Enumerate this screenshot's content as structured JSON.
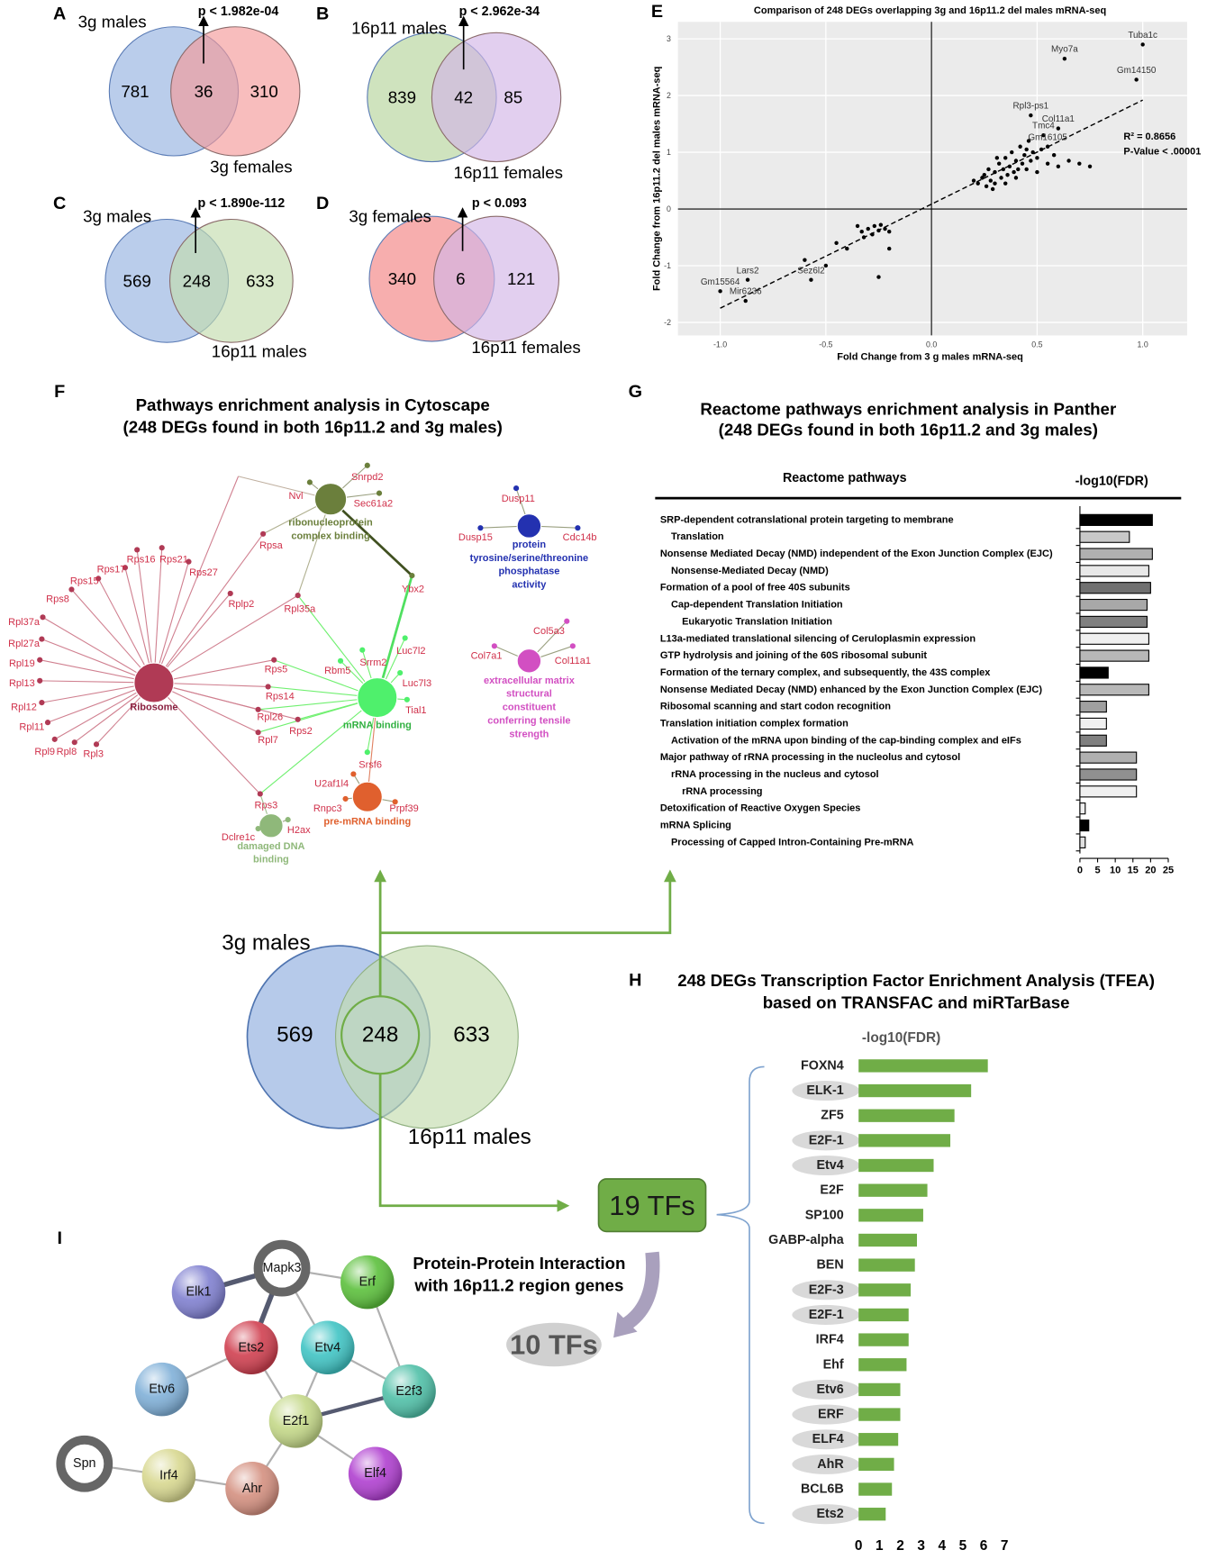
{
  "panel_letters": [
    "A",
    "B",
    "C",
    "D",
    "E",
    "F",
    "G",
    "H",
    "I"
  ],
  "venns": [
    {
      "p_value": "p < 1.982e-04",
      "left": {
        "label": "3g males",
        "count": 781,
        "color": "#a9c1e6"
      },
      "overlap": 36,
      "right": {
        "label": "3g females",
        "count": 310,
        "color": "#f59a9a"
      }
    },
    {
      "p_value": "p < 2.962e-34",
      "left": {
        "label": "16p11 males",
        "count": 839,
        "color": "#c3dcae"
      },
      "overlap": 42,
      "right": {
        "label": "16p11 females",
        "count": 85,
        "color": "#d3b6e6"
      }
    },
    {
      "p_value": "p < 1.890e-112",
      "left": {
        "label": "3g males",
        "count": 569,
        "color": "#a9c1e6"
      },
      "overlap": 248,
      "right": {
        "label": "16p11 males",
        "count": 633,
        "color": "#c3dcae"
      }
    },
    {
      "p_value": "p < 0.093",
      "left": {
        "label": "3g females",
        "count": 340,
        "color": "#f59a9a"
      },
      "overlap": 6,
      "right": {
        "label": "16p11 females",
        "count": 121,
        "color": "#d3b6e6"
      }
    }
  ],
  "chart_data": [
    {
      "type": "scatter",
      "title": "Comparison of 248 DEGs overlapping 3g and 16p11.2 del males mRNA-seq",
      "x_label": "Fold Change from 3 g males mRNA-seq",
      "y_label": "Fold Change from 16p11.2 del males mRNA-seq",
      "xlim": [
        -1.2,
        1.21
      ],
      "ylim": [
        -2.23,
        3.3
      ],
      "xticks": [
        {
          "value": -1,
          "label": "-1.0"
        },
        {
          "value": -0.5,
          "label": "-0.5"
        },
        {
          "value": 0,
          "label": "0.0"
        },
        {
          "value": 0.5,
          "label": "0.5"
        },
        {
          "value": 1,
          "label": "1.0"
        }
      ],
      "yticks": [
        -2,
        -1,
        0,
        1,
        2,
        3
      ],
      "grid": true,
      "color": "#000000",
      "x": [
        0.2,
        0.22,
        0.24,
        0.25,
        0.26,
        0.27,
        0.28,
        0.3,
        0.3,
        0.32,
        0.33,
        0.34,
        0.35,
        0.36,
        0.37,
        0.38,
        0.39,
        0.4,
        0.41,
        0.42,
        0.43,
        0.44,
        0.45,
        0.46,
        0.47,
        0.48,
        0.5,
        0.52,
        0.55,
        0.58,
        0.6,
        0.65,
        0.7,
        0.75,
        0.29,
        0.31,
        0.4,
        0.35,
        0.45,
        0.5,
        -0.35,
        -0.33,
        -0.3,
        -0.28,
        -0.27,
        -0.25,
        -0.24,
        -0.22,
        -0.2,
        -0.32,
        -0.45,
        -0.4,
        -0.5,
        -0.25,
        -0.6,
        -0.2
      ],
      "y": [
        0.5,
        0.45,
        0.55,
        0.6,
        0.4,
        0.7,
        0.5,
        0.65,
        0.45,
        0.8,
        0.55,
        0.7,
        0.9,
        0.6,
        0.75,
        1.0,
        0.65,
        0.85,
        0.7,
        1.1,
        0.8,
        0.95,
        0.7,
        1.2,
        0.85,
        1.0,
        0.9,
        1.05,
        0.8,
        0.95,
        0.75,
        0.85,
        0.8,
        0.75,
        0.35,
        0.9,
        0.55,
        0.45,
        1.05,
        0.65,
        -0.3,
        -0.4,
        -0.35,
        -0.45,
        -0.3,
        -0.38,
        -0.28,
        -0.35,
        -0.4,
        -0.5,
        -0.6,
        -0.7,
        -1.0,
        -1.2,
        -0.9,
        -0.7
      ],
      "labeled_points": [
        {
          "label": "Tuba1c",
          "x": 1.0,
          "y": 2.9
        },
        {
          "label": "Myo7a",
          "x": 0.63,
          "y": 2.65
        },
        {
          "label": "Gm14150",
          "x": 0.97,
          "y": 2.28
        },
        {
          "label": "Rpl3-ps1",
          "x": 0.47,
          "y": 1.65
        },
        {
          "label": "Col11a1",
          "x": 0.6,
          "y": 1.42
        },
        {
          "label": "Tmc4",
          "x": 0.53,
          "y": 1.3
        },
        {
          "label": "Gm16105",
          "x": 0.55,
          "y": 1.1
        },
        {
          "label": "Lars2",
          "x": -0.87,
          "y": -1.25
        },
        {
          "label": "Sez6l2",
          "x": -0.57,
          "y": -1.25
        },
        {
          "label": "Gm15564",
          "x": -1.0,
          "y": -1.45
        },
        {
          "label": "Mir6236",
          "x": -0.88,
          "y": -1.62
        }
      ],
      "trendline": {
        "x": [
          -1.0,
          1.0
        ],
        "y": [
          -1.75,
          1.92
        ]
      },
      "annotations": [
        "R² = 0.8656",
        "P-Value < .00001"
      ]
    },
    {
      "type": "bar",
      "orientation": "horizontal",
      "title": [
        "Reactome pathways enrichment analysis in Panther",
        "(248 DEGs found in both 16p11.2 and 3g males)"
      ],
      "category_header": "Reactome pathways",
      "value_header": "-log10(FDR)",
      "categories": [
        "SRP-dependent cotranslational protein targeting to membrane",
        "Translation",
        "Nonsense Mediated Decay (NMD) independent of the Exon Junction Complex (EJC)",
        "Nonsense-Mediated Decay (NMD)",
        "Formation of a pool of free 40S subunits",
        "Cap-dependent Translation Initiation",
        "Eukaryotic Translation Initiation",
        "L13a-mediated translational silencing of Ceruloplasmin expression",
        "GTP hydrolysis and joining of the 60S ribosomal subunit",
        "Formation of the ternary complex, and subsequently, the 43S complex",
        "Nonsense Mediated Decay (NMD) enhanced by the Exon Junction Complex (EJC)",
        "Ribosomal scanning and start codon recognition",
        "Translation initiation complex formation",
        "Activation of the mRNA upon binding of the cap-binding complex and eIFs",
        "Major pathway of rRNA processing in the nucleolus and cytosol",
        "rRNA processing in the nucleus and cytosol",
        "rRNA processing",
        "Detoxification of Reactive Oxygen Species",
        "mRNA Splicing",
        "Processing of Capped Intron-Containing Pre-mRNA"
      ],
      "values": [
        20.5,
        14,
        20.5,
        19.5,
        20,
        19,
        19,
        19.5,
        19.5,
        8,
        19.5,
        7.5,
        7.5,
        7.5,
        16,
        16,
        16,
        1.5,
        2.5,
        1.5
      ],
      "colors": [
        "#000000",
        "#c8c8c8",
        "#b0b0b0",
        "#e8e8e8",
        "#707070",
        "#a8a8a8",
        "#808080",
        "#f0f0f0",
        "#b8b8b8",
        "#000000",
        "#b8b8b8",
        "#a0a0a0",
        "#f0f0f0",
        "#808080",
        "#b0b0b0",
        "#909090",
        "#f0f0f0",
        "#f0f0f0",
        "#000000",
        "#e0e0e0"
      ],
      "xlim": [
        0,
        25
      ],
      "xticks": [
        0,
        5,
        10,
        15,
        20,
        25
      ]
    },
    {
      "type": "bar",
      "orientation": "horizontal",
      "title": [
        "248 DEGs Transcription Factor Enrichment Analysis (TFEA)",
        "based on TRANSFAC and miRTarBase"
      ],
      "value_header": "-log10(FDR)",
      "categories": [
        "FOXN4",
        "ELK-1",
        "ZF5",
        "E2F-1",
        "Etv4",
        "E2F",
        "SP100",
        "GABP-alpha",
        "BEN",
        "E2F-3",
        "E2F-1",
        "IRF4",
        "Ehf",
        "Etv6",
        "ERF",
        "ELF4",
        "AhR",
        "BCL6B",
        "Ets2"
      ],
      "values": [
        6.2,
        5.4,
        4.6,
        4.4,
        3.6,
        3.3,
        3.1,
        2.8,
        2.7,
        2.5,
        2.4,
        2.4,
        2.3,
        2.0,
        2.0,
        1.9,
        1.7,
        1.6,
        1.3
      ],
      "color": "#70ad47",
      "xlim": [
        0,
        7
      ],
      "xticks": [
        0,
        1,
        2,
        3,
        4,
        5,
        6,
        7
      ]
    }
  ],
  "network_f": {
    "title": [
      "Pathways enrichment analysis in Cytoscape",
      "(248 DEGs found in both 16p11.2 and 3g males)"
    ],
    "hubs": [
      {
        "label": [
          "Ribosome"
        ],
        "color": "#b03a55",
        "genes": [
          "Rps8",
          "Rps15",
          "Rps17",
          "Rps16",
          "Rps21",
          "Rps27",
          "Rpl37a",
          "Rpl27a",
          "Rpl19",
          "Rpl13",
          "Rpl12",
          "Rpl11",
          "Rpl9",
          "Rpl8",
          "Rpl3",
          "Rpsa",
          "Rplp2",
          "Rpl35a",
          "Rps5",
          "Rps14",
          "Rpl26",
          "Rps2",
          "Rpl7",
          "Rps3"
        ]
      },
      {
        "label": [
          "ribonucleoprotein",
          "complex binding"
        ],
        "color": "#6b7f3c",
        "genes": [
          "Nvl",
          "Snrpd2",
          "Sec61a2",
          "Ybx2"
        ]
      },
      {
        "label": [
          "mRNA binding"
        ],
        "color": "#4ff06c",
        "genes": [
          "Srrm2",
          "Rbm5",
          "Luc7l2",
          "Luc7l3",
          "Tial1",
          "Srsf6"
        ]
      },
      {
        "label": [
          "pre-mRNA binding"
        ],
        "color": "#e0602e",
        "genes": [
          "U2af1l4",
          "Rnpc3",
          "Prpf39"
        ]
      },
      {
        "label": [
          "damaged DNA",
          "binding"
        ],
        "color": "#8fb87a",
        "genes": [
          "Dclre1c",
          "H2ax"
        ]
      },
      {
        "label": [
          "protein",
          "tyrosine/serine/threonine",
          "phosphatase",
          "activity"
        ],
        "color": "#2331b0",
        "genes": [
          "Dusp11",
          "Dusp15",
          "Cdc14b"
        ]
      },
      {
        "label": [
          "extracellular matrix",
          "structural",
          "constituent",
          "conferring tensile",
          "strength"
        ],
        "color": "#d24fc2",
        "genes": [
          "Col5a3",
          "Col7a1",
          "Col11a1"
        ]
      }
    ]
  },
  "summary": {
    "left_label": "3g males",
    "right_label": "16p11 males",
    "left_count": 569,
    "overlap": 248,
    "right_count": 633,
    "tfs_found": "19 TFs",
    "tfs_interacting": "10 TFs"
  },
  "network_i": {
    "title": [
      "Protein-Protein Interaction",
      "with 16p11.2 region genes"
    ],
    "nodes": [
      "Mapk3",
      "Elk1",
      "Erf",
      "Ets2",
      "Etv4",
      "Etv6",
      "E2f3",
      "E2f1",
      "Spn",
      "Irf4",
      "Ahr",
      "Elf4"
    ]
  }
}
